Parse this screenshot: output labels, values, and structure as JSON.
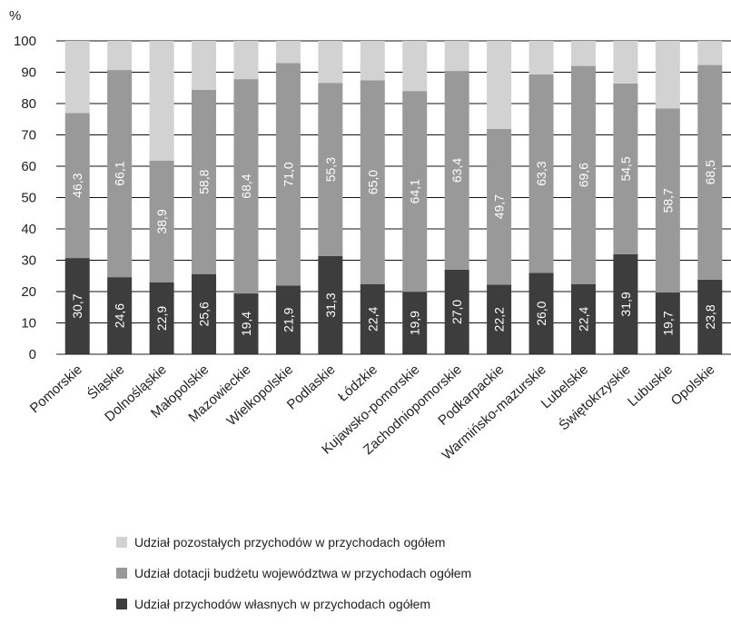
{
  "chart_data": {
    "type": "bar",
    "stacked": true,
    "unit": "%",
    "ylim": [
      0,
      100
    ],
    "yticks": [
      0,
      10,
      20,
      30,
      40,
      50,
      60,
      70,
      80,
      90,
      100
    ],
    "grid": true,
    "categories": [
      "Pomorskie",
      "Śląskie",
      "Dolnośląskie",
      "Małopolskie",
      "Mazowieckie",
      "Wielkopolskie",
      "Podlaskie",
      "Łódzkie",
      "Kujawsko-pomorskie",
      "Zachodniopomorskie",
      "Podkarpackie",
      "Warmińsko-mazurskie",
      "Lubelskie",
      "Świętokrzyskie",
      "Lubuskie",
      "Opolskie"
    ],
    "series": [
      {
        "name": "Udział przychodów własnych w przychodach ogółem",
        "color": "#3d3d3d",
        "values": [
          30.7,
          24.6,
          22.9,
          25.6,
          19.4,
          21.9,
          31.3,
          22.4,
          19.9,
          27.0,
          22.2,
          26.0,
          22.4,
          31.9,
          19.7,
          23.8
        ],
        "labels": [
          "30,7",
          "24,6",
          "22,9",
          "25,6",
          "19,4",
          "21,9",
          "31,3",
          "22,4",
          "19,9",
          "27,0",
          "22,2",
          "26,0",
          "22,4",
          "31,9",
          "19,7",
          "23,8"
        ]
      },
      {
        "name": "Udział dotacji budżetu województwa w przychodach ogółem",
        "color": "#999999",
        "values": [
          46.3,
          66.1,
          38.9,
          58.8,
          68.4,
          71.0,
          55.3,
          65.0,
          64.1,
          63.4,
          49.7,
          63.3,
          69.6,
          54.5,
          58.7,
          68.5
        ],
        "labels": [
          "46,3",
          "66,1",
          "38,9",
          "58,8",
          "68,4",
          "71,0",
          "55,3",
          "65,0",
          "64,1",
          "63,4",
          "49,7",
          "63,3",
          "69,6",
          "54,5",
          "58,7",
          "68,5"
        ]
      },
      {
        "name": "Udział pozostałych przychodów w przychodach ogółem",
        "color": "#d2d2d2",
        "values": [
          23.0,
          9.3,
          38.2,
          15.6,
          12.2,
          7.1,
          13.4,
          12.6,
          16.0,
          9.6,
          28.1,
          10.7,
          8.0,
          13.6,
          21.6,
          7.7
        ],
        "labels": []
      }
    ],
    "legend_order": [
      2,
      1,
      0
    ],
    "legend_position": "bottom"
  }
}
